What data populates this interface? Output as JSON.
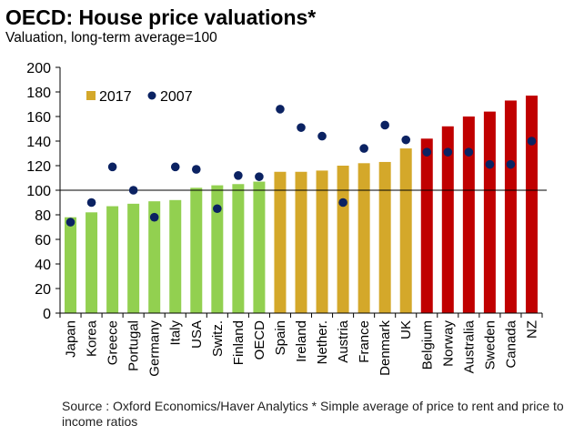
{
  "header": {
    "title": "OECD: House price valuations*",
    "subtitle": "Valuation, long-term average=100"
  },
  "footer": {
    "source": "Source : Oxford Economics/Haver Analytics * Simple average of price to rent and price to income ratios"
  },
  "colors": {
    "below_average": "#92d050",
    "moderately_above": "#d4a82a",
    "well_above": "#c00000",
    "dot_2007": "#0b2262",
    "reference_line": "#000000"
  },
  "chart_data": {
    "type": "bar",
    "title": "OECD: House price valuations*",
    "subtitle": "Valuation, long-term average=100",
    "xlabel": "",
    "ylabel": "",
    "ylim": [
      0,
      200
    ],
    "yticks": [
      0,
      20,
      40,
      60,
      80,
      100,
      120,
      140,
      160,
      180,
      200
    ],
    "reference_line": 100,
    "grid": false,
    "legend": {
      "position": "top-left",
      "entries": [
        {
          "label": "2017",
          "marker": "square",
          "color": "#d4a82a"
        },
        {
          "label": "2007",
          "marker": "circle",
          "color": "#0b2262"
        }
      ]
    },
    "categories": [
      "Japan",
      "Korea",
      "Greece",
      "Portugal",
      "Germany",
      "Italy",
      "USA",
      "Switz.",
      "Finland",
      "OECD",
      "Spain",
      "Ireland",
      "Nether.",
      "Austria",
      "France",
      "Denmark",
      "UK",
      "Belgium",
      "Norway",
      "Australia",
      "Sweden",
      "Canada",
      "NZ"
    ],
    "bar_color_groups": [
      "green",
      "green",
      "green",
      "green",
      "green",
      "green",
      "green",
      "green",
      "green",
      "green",
      "gold",
      "gold",
      "gold",
      "gold",
      "gold",
      "gold",
      "gold",
      "red",
      "red",
      "red",
      "red",
      "red",
      "red"
    ],
    "series": [
      {
        "name": "2017",
        "kind": "bar",
        "values": [
          78,
          82,
          87,
          89,
          91,
          92,
          102,
          104,
          105,
          107,
          115,
          115,
          116,
          120,
          122,
          123,
          134,
          142,
          152,
          160,
          164,
          173,
          177
        ]
      },
      {
        "name": "2007",
        "kind": "scatter",
        "values": [
          74,
          90,
          119,
          100,
          78,
          119,
          117,
          85,
          112,
          111,
          166,
          151,
          144,
          90,
          134,
          153,
          141,
          131,
          131,
          131,
          121,
          121,
          140
        ]
      }
    ]
  }
}
